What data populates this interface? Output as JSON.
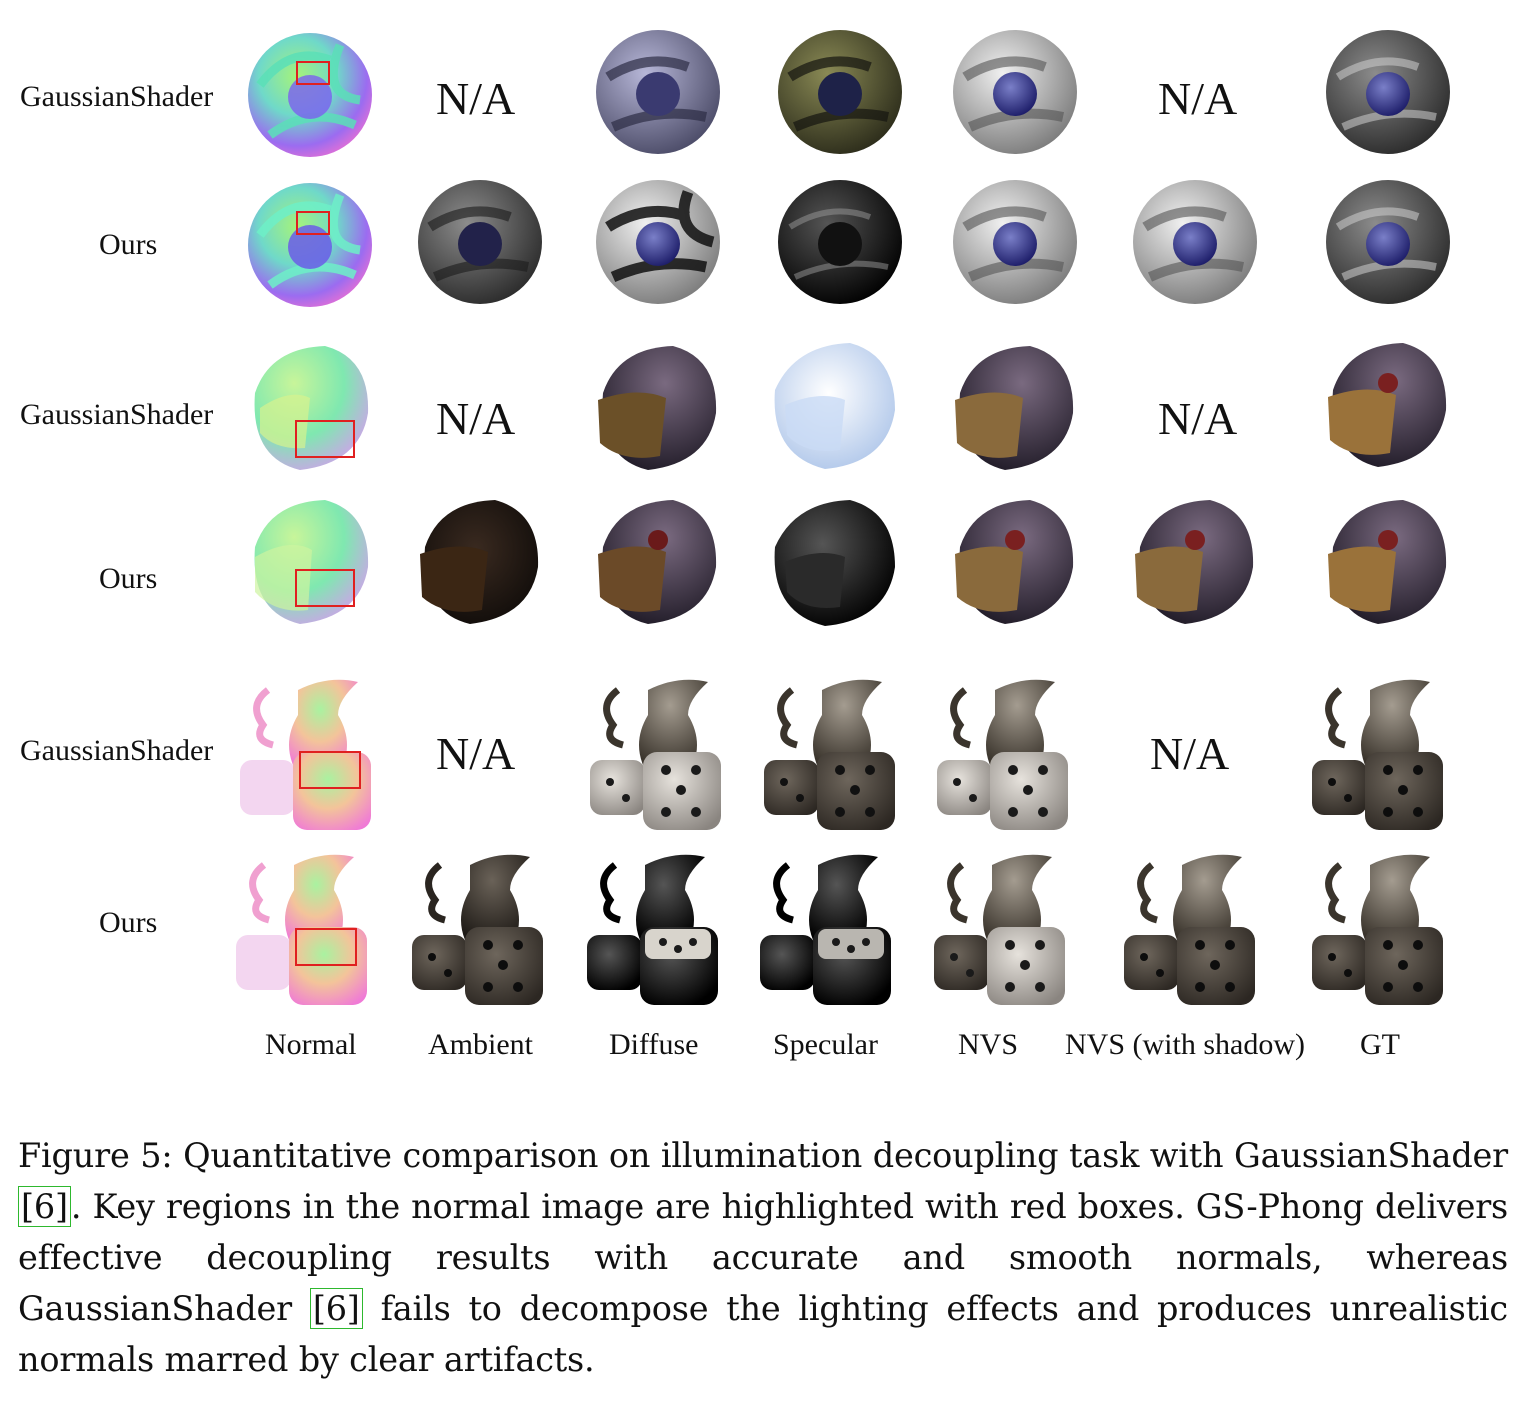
{
  "rows": [
    {
      "label": "GaussianShader"
    },
    {
      "label": "Ours"
    },
    {
      "label": "GaussianShader"
    },
    {
      "label": "Ours"
    },
    {
      "label": "GaussianShader"
    },
    {
      "label": "Ours"
    }
  ],
  "na_text": "N/A",
  "columns": [
    "Normal",
    "Ambient",
    "Diffuse",
    "Specular",
    "NVS",
    "NVS (with shadow)",
    "GT"
  ],
  "caption": {
    "p1": "Figure 5: Quantitative comparison on illumination decoupling task with GaussianShader ",
    "cite1": "[6]",
    "p2": ". Key regions in the normal image are highlighted with red boxes. GS-Phong delivers effective decoupling results with accurate and smooth normals, whereas GaussianShader ",
    "cite2": "[6]",
    "p3": " fails to decompose the lighting effects and produces unrealistic normals marred by clear artifacts."
  },
  "colors": {
    "highlight_box": "#e02020",
    "citation_box": "#2eb82e"
  }
}
